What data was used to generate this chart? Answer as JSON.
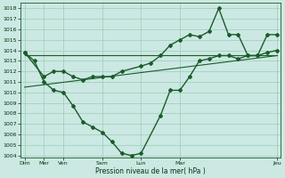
{
  "background_color": "#cce8e2",
  "grid_color": "#99ccbb",
  "line_color": "#1a5c2a",
  "ylim": [
    1003.8,
    1018.5
  ],
  "yticks": [
    1004,
    1005,
    1006,
    1007,
    1008,
    1009,
    1010,
    1011,
    1012,
    1013,
    1014,
    1015,
    1016,
    1017,
    1018
  ],
  "xlabel": "Pression niveau de la mer( hPa )",
  "xlim": [
    -0.2,
    13.2
  ],
  "xtick_positions": [
    0,
    1,
    2,
    4,
    6,
    8,
    13
  ],
  "xtick_labels": [
    "Dim",
    "Mer",
    "Ven",
    "Sam",
    "Lun",
    "Mar",
    "Jeu"
  ],
  "series_zigzag1": {
    "x": [
      0,
      0.5,
      1,
      1.5,
      2,
      2.5,
      3,
      3.5,
      4,
      4.5,
      5,
      5.5,
      6,
      7,
      7.5,
      8,
      8.5,
      9,
      9.5,
      10,
      10.5,
      11,
      11.5,
      12,
      12.5,
      13
    ],
    "y": [
      1013.8,
      1013.0,
      1011.0,
      1010.2,
      1010.0,
      1008.7,
      1007.2,
      1006.7,
      1006.2,
      1005.3,
      1004.2,
      1004.0,
      1004.2,
      1007.8,
      1010.2,
      1010.2,
      1011.5,
      1013.0,
      1013.2,
      1013.5,
      1013.5,
      1013.2,
      1013.5,
      1013.5,
      1013.8,
      1014.0
    ]
  },
  "series_zigzag2": {
    "x": [
      0,
      1,
      1.5,
      2,
      2.5,
      3,
      3.5,
      4,
      4.5,
      5,
      6,
      6.5,
      7,
      7.5,
      8,
      8.5,
      9,
      9.5,
      10,
      10.5,
      11,
      11.5,
      12,
      12.5,
      13
    ],
    "y": [
      1013.8,
      1011.5,
      1012.0,
      1012.0,
      1011.5,
      1011.2,
      1011.5,
      1011.5,
      1011.5,
      1012.0,
      1012.5,
      1012.8,
      1013.5,
      1014.5,
      1015.0,
      1015.5,
      1015.3,
      1015.8,
      1018.0,
      1015.5,
      1015.5,
      1013.5,
      1013.5,
      1015.5,
      1015.5
    ]
  },
  "trend_line1": {
    "x": [
      0,
      13
    ],
    "y": [
      1013.5,
      1013.5
    ]
  },
  "trend_line2": {
    "x": [
      0,
      13
    ],
    "y": [
      1010.5,
      1013.5
    ]
  }
}
